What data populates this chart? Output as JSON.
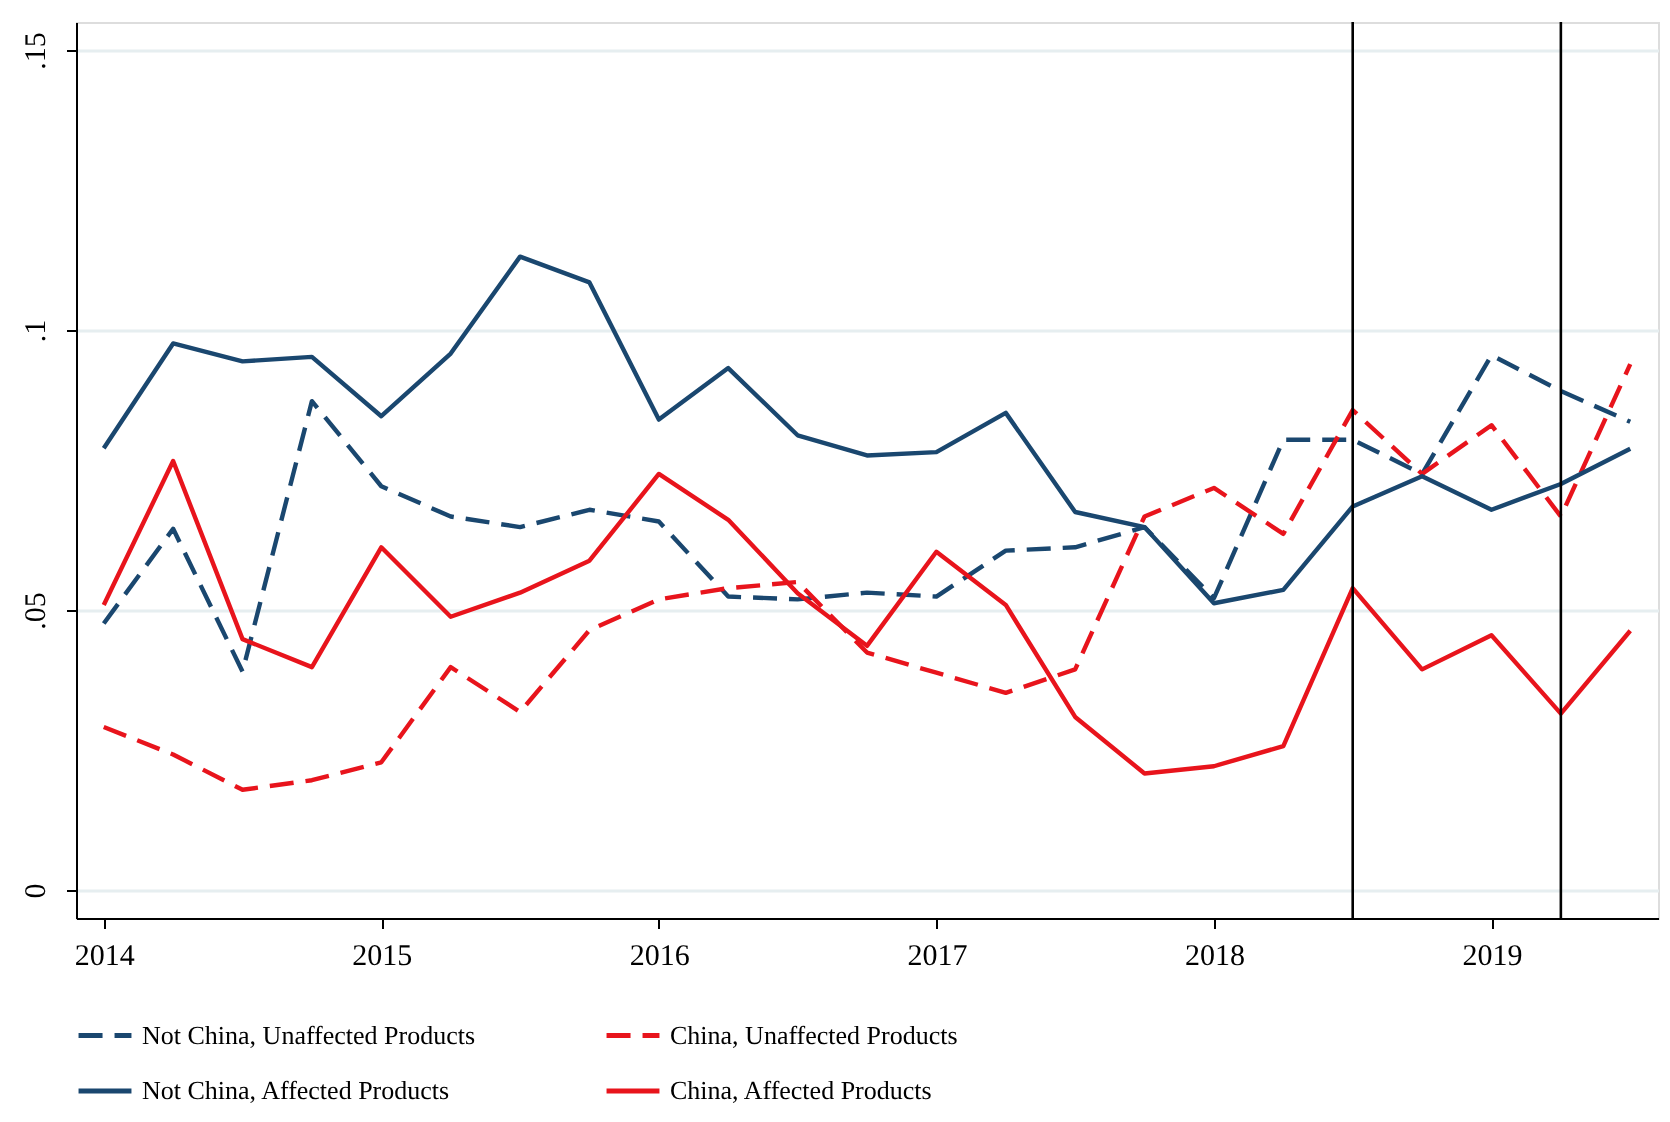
{
  "chart_data": {
    "type": "line",
    "x": [
      2014,
      2014.25,
      2014.5,
      2014.75,
      2015,
      2015.25,
      2015.5,
      2015.75,
      2016,
      2016.25,
      2016.5,
      2016.75,
      2017,
      2017.25,
      2017.5,
      2017.75,
      2018,
      2018.25,
      2018.5,
      2018.75,
      2019,
      2019.25,
      2019.5
    ],
    "series": [
      {
        "name": "Not China, Unaffected Products",
        "color": "#1a476f",
        "line_style": "dashed",
        "values": [
          0.0476,
          0.0645,
          0.039,
          0.0873,
          0.0721,
          0.0667,
          0.0648,
          0.0679,
          0.0658,
          0.0524,
          0.0519,
          0.0531,
          0.0524,
          0.0606,
          0.0612,
          0.0648,
          0.0521,
          0.0804,
          0.0804,
          0.0743,
          0.0955,
          0.0891,
          0.0836
        ]
      },
      {
        "name": "China, Unaffected Products",
        "color": "#e8141c",
        "line_style": "dashed",
        "values": [
          0.0291,
          0.0242,
          0.0179,
          0.0196,
          0.0228,
          0.0398,
          0.0318,
          0.0464,
          0.0519,
          0.0539,
          0.055,
          0.0424,
          0.0388,
          0.0352,
          0.0394,
          0.0667,
          0.0718,
          0.0636,
          0.0857,
          0.0743,
          0.083,
          0.0667,
          0.0939
        ]
      },
      {
        "name": "Not China, Affected Products",
        "color": "#1a476f",
        "line_style": "solid",
        "values": [
          0.0789,
          0.0976,
          0.0944,
          0.0952,
          0.0846,
          0.0958,
          0.1131,
          0.1085,
          0.084,
          0.0932,
          0.0812,
          0.0776,
          0.0782,
          0.0852,
          0.0675,
          0.0648,
          0.0512,
          0.0536,
          0.0685,
          0.0739,
          0.0679,
          0.0725,
          0.0788
        ]
      },
      {
        "name": "China, Affected Products",
        "color": "#e8141c",
        "line_style": "solid",
        "values": [
          0.0509,
          0.0766,
          0.0448,
          0.0398,
          0.0612,
          0.0488,
          0.0531,
          0.0588,
          0.0743,
          0.0661,
          0.053,
          0.0436,
          0.0604,
          0.0509,
          0.0309,
          0.0208,
          0.0221,
          0.0257,
          0.0539,
          0.0394,
          0.0455,
          0.0315,
          0.0463
        ]
      }
    ],
    "xlim": [
      2013.9,
      2019.6
    ],
    "xticks": [
      2014,
      2015,
      2016,
      2017,
      2018,
      2019
    ],
    "ylim": [
      -0.005,
      0.155
    ],
    "yticks": [
      {
        "value": 0,
        "label": "0"
      },
      {
        "value": 0.05,
        "label": ".05"
      },
      {
        "value": 0.1,
        "label": ".1"
      },
      {
        "value": 0.15,
        "label": ".15"
      }
    ],
    "ref_lines": [
      {
        "axis": "x",
        "value": 2018.5,
        "color": "#000000"
      },
      {
        "axis": "x",
        "value": 2019.25,
        "color": "#000000"
      }
    ],
    "grid": "y",
    "legend": "bottom"
  }
}
